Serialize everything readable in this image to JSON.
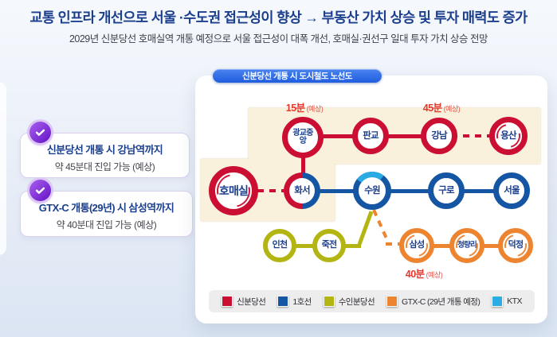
{
  "header": {
    "title": "교통 인프라 개선으로 서울 ·수도권 접근성이 향상 → 부동산 가치 상승 및 투자 매력도 증가",
    "subtitle": "2029년 신분당선 호매실역 개통 예정으로 서울 접근성이 대폭 개선, 호매실·권선구 일대 투자 가치 상승 전망"
  },
  "benefits": [
    {
      "title": "신분당선 개통 시 강남역까지",
      "subtitle": "약 45분대 진입 가능 (예상)",
      "icon": "check-icon"
    },
    {
      "title": "GTX-C 개통(29년) 시 삼성역까지",
      "subtitle": "약 40분대 진입 가능 (예상)",
      "icon": "check-icon"
    }
  ],
  "map": {
    "badge": "신분당선 개통 시 도시철도 노선도",
    "time_labels": [
      {
        "value": "15분",
        "note": "(예상)"
      },
      {
        "value": "45분",
        "note": "(예상)"
      },
      {
        "value": "40분",
        "note": "(예상)"
      }
    ],
    "stations": [
      {
        "id": "gwanggyo_jungang",
        "label": "광교중앙",
        "line": "red",
        "size": 52,
        "ring": 7,
        "font": 10,
        "wrap": true
      },
      {
        "id": "pangyo",
        "label": "판교",
        "line": "red",
        "size": 46,
        "ring": 7,
        "font": 11.5
      },
      {
        "id": "gangnam",
        "label": "강남",
        "line": "red",
        "size": 46,
        "ring": 7,
        "font": 11.5
      },
      {
        "id": "yongsan",
        "label": "용산",
        "line": "red",
        "size": 48,
        "ring": 7,
        "font": 11.5,
        "deco": true
      },
      {
        "id": "homaesil",
        "label": "호매실",
        "line": "red",
        "size": 62,
        "ring": 8,
        "font": 14,
        "deco": true
      },
      {
        "id": "hwaseo",
        "label": "화서",
        "line": "half",
        "size": 46,
        "ring": 7,
        "font": 11.5
      },
      {
        "id": "suwon",
        "label": "수원",
        "line": "blue",
        "size": 48,
        "ring": 7,
        "font": 11.5,
        "ktx_arc": true
      },
      {
        "id": "guro",
        "label": "구로",
        "line": "blue",
        "size": 46,
        "ring": 7,
        "font": 11.5
      },
      {
        "id": "seoul",
        "label": "서울",
        "line": "blue",
        "size": 46,
        "ring": 7,
        "font": 11.5
      },
      {
        "id": "incheon",
        "label": "인천",
        "line": "olive",
        "size": 42,
        "ring": 6,
        "font": 11
      },
      {
        "id": "jukjeon",
        "label": "죽전",
        "line": "olive",
        "size": 42,
        "ring": 6,
        "font": 11
      },
      {
        "id": "samseong",
        "label": "삼성",
        "line": "orange",
        "size": 44,
        "ring": 6,
        "font": 11,
        "deco": true
      },
      {
        "id": "cheongnyangni",
        "label": "청량리",
        "line": "orange",
        "size": 44,
        "ring": 6,
        "font": 9.5,
        "deco": true
      },
      {
        "id": "deokjeong",
        "label": "덕정",
        "line": "orange",
        "size": 44,
        "ring": 6,
        "font": 11,
        "deco": true
      }
    ],
    "legend": [
      {
        "label": "신분당선",
        "color_key": "red"
      },
      {
        "label": "1호선",
        "color_key": "blue"
      },
      {
        "label": "수인분당선",
        "color_key": "olive"
      },
      {
        "label": "GTX-C (29년 개통 예정)",
        "color_key": "orange"
      },
      {
        "label": "KTX",
        "color_key": "ktx"
      }
    ]
  },
  "colors": {
    "red": "#cb0f33",
    "blue": "#1456a3",
    "olive": "#b3b512",
    "orange": "#ec8430",
    "ktx": "#2aabe4",
    "navy": "#1b3f8d",
    "time_red": "#e2392e",
    "cream": "#faf1dd",
    "cream_border": "#dfcca2",
    "purple": "#7a2ed2"
  }
}
